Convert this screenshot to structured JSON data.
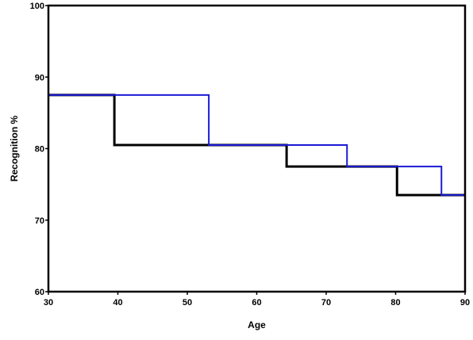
{
  "chart_data": {
    "type": "line",
    "title": "",
    "xlabel": "Age",
    "ylabel": "Recognition  %",
    "xlim": [
      30,
      90
    ],
    "ylim": [
      60,
      100
    ],
    "x_ticks": [
      "30",
      "40",
      "50",
      "60",
      "70",
      "80",
      "90"
    ],
    "y_ticks": [
      "60",
      "70",
      "80",
      "90",
      "100"
    ],
    "grid": false,
    "legend": "none",
    "series": [
      {
        "color": "#000000",
        "step": true,
        "x": [
          30,
          39.5,
          39.5,
          64.3,
          64.3,
          80.2,
          80.2,
          90
        ],
        "y": [
          87.5,
          87.5,
          80.5,
          80.5,
          77.5,
          77.5,
          73.5,
          73.5
        ]
      },
      {
        "color": "#1a1ad6",
        "step": true,
        "x": [
          30,
          53.1,
          53.1,
          73.0,
          73.0,
          86.6,
          86.6,
          90
        ],
        "y": [
          87.5,
          87.5,
          80.5,
          80.5,
          77.5,
          77.5,
          73.5,
          73.5
        ]
      }
    ]
  }
}
